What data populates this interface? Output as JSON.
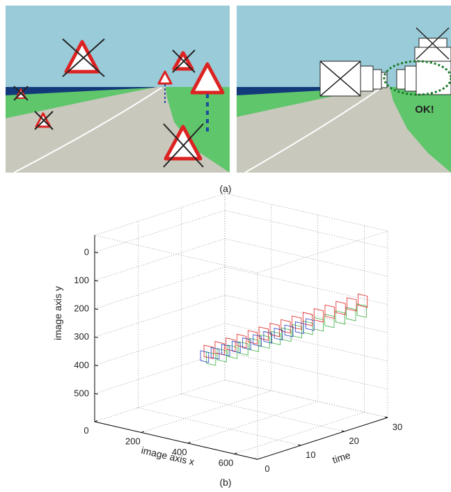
{
  "panel_a": {
    "caption": "(a)",
    "ok_label": "OK!"
  },
  "panel_b": {
    "caption": "(b)",
    "y_label": "image axis y",
    "x_label": "image axis x",
    "t_label": "time",
    "ylim": [
      -60,
      600
    ],
    "yticks": [
      0,
      100,
      200,
      300,
      400,
      500
    ],
    "xlim": [
      0,
      700
    ],
    "xticks": [
      0,
      200,
      400,
      600
    ],
    "tlim": [
      0,
      30
    ],
    "tticks": [
      0,
      10,
      20,
      30
    ],
    "grid": true
  }
}
